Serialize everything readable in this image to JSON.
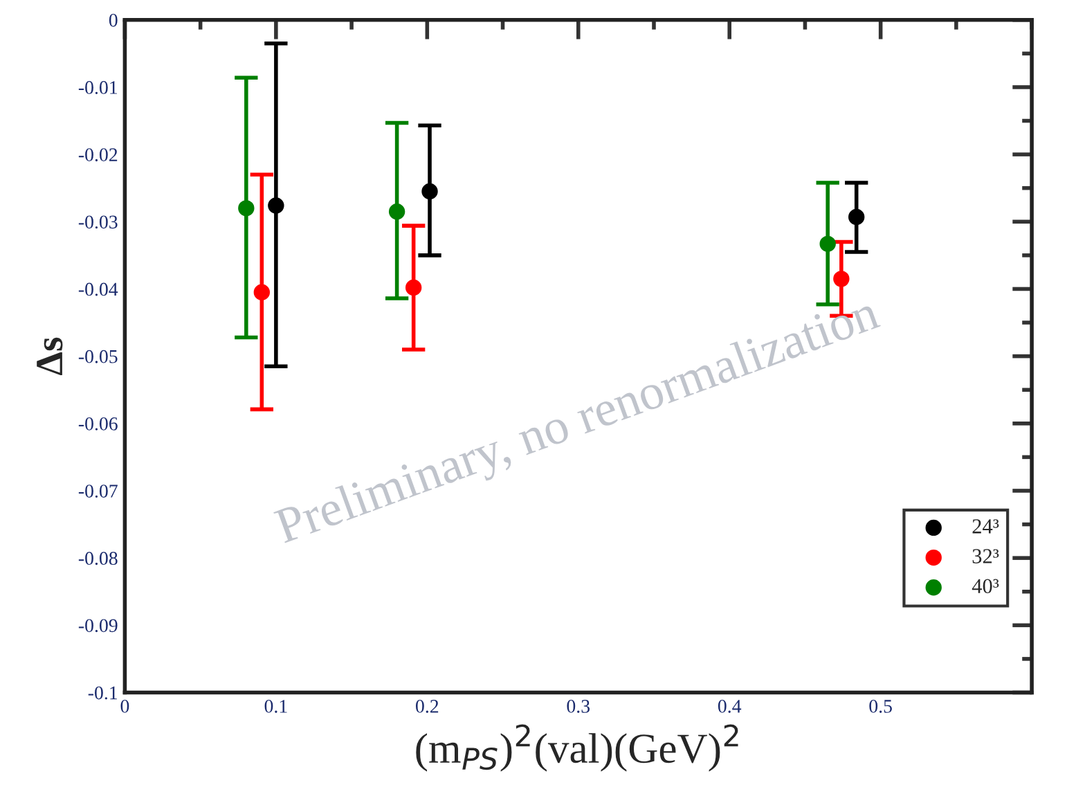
{
  "chart_data": {
    "type": "scatter",
    "xlabel": "(m$_{PS}$)$^{2}$(val)(GeV)$^{2}$",
    "ylabel": "Δs",
    "series": [
      {
        "name": "24³",
        "color": "#000000",
        "x": [
          0.1,
          0.2017,
          0.484
        ],
        "values": [
          -0.0276,
          -0.0255,
          -0.0293
        ],
        "errors": [
          [
            -0.0515,
            -0.0035
          ],
          [
            -0.035,
            -0.0157
          ],
          [
            -0.0345,
            -0.0242
          ]
        ]
      },
      {
        "name": "32³",
        "color": "#ff0000",
        "x": [
          0.0906,
          0.191,
          0.474
        ],
        "values": [
          -0.0405,
          -0.0398,
          -0.0385
        ],
        "errors": [
          [
            -0.0579,
            -0.023
          ],
          [
            -0.049,
            -0.0306
          ],
          [
            -0.044,
            -0.033
          ]
        ]
      },
      {
        "name": "40³",
        "color": "#008000",
        "x": [
          0.0803,
          0.18,
          0.465
        ],
        "values": [
          -0.028,
          -0.0285,
          -0.0333
        ],
        "errors": [
          [
            -0.0472,
            -0.0086
          ],
          [
            -0.0414,
            -0.0153
          ],
          [
            -0.0423,
            -0.0242
          ]
        ]
      }
    ],
    "xlim": [
      0,
      0.6
    ],
    "ylim": [
      -0.1,
      0
    ],
    "xticks": [
      0,
      0.1,
      0.2,
      0.3,
      0.4,
      0.5
    ],
    "yticks": [
      0,
      -0.01,
      -0.02,
      -0.03,
      -0.04,
      -0.05,
      -0.06,
      -0.07,
      -0.08,
      -0.09,
      -0.1
    ],
    "marker": "circle",
    "legend": "right",
    "grid": false,
    "annotations": [
      "Preliminary, no renormalization"
    ]
  }
}
